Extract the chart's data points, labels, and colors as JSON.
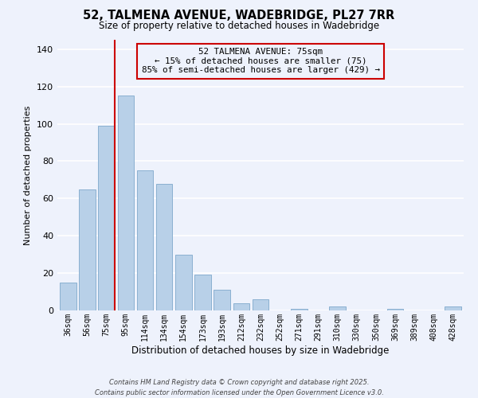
{
  "title": "52, TALMENA AVENUE, WADEBRIDGE, PL27 7RR",
  "subtitle": "Size of property relative to detached houses in Wadebridge",
  "xlabel": "Distribution of detached houses by size in Wadebridge",
  "ylabel": "Number of detached properties",
  "bar_labels": [
    "36sqm",
    "56sqm",
    "75sqm",
    "95sqm",
    "114sqm",
    "134sqm",
    "154sqm",
    "173sqm",
    "193sqm",
    "212sqm",
    "232sqm",
    "252sqm",
    "271sqm",
    "291sqm",
    "310sqm",
    "330sqm",
    "350sqm",
    "369sqm",
    "389sqm",
    "408sqm",
    "428sqm"
  ],
  "bar_values": [
    15,
    65,
    99,
    115,
    75,
    68,
    30,
    19,
    11,
    4,
    6,
    0,
    1,
    0,
    2,
    0,
    0,
    1,
    0,
    0,
    2
  ],
  "bar_color": "#b8d0e8",
  "bar_edge_color": "#8ab0d0",
  "reference_line_color": "#cc0000",
  "reference_bar_index": 2,
  "ylim": [
    0,
    145
  ],
  "yticks": [
    0,
    20,
    40,
    60,
    80,
    100,
    120,
    140
  ],
  "annotation_line1": "52 TALMENA AVENUE: 75sqm",
  "annotation_line2": "← 15% of detached houses are smaller (75)",
  "annotation_line3": "85% of semi-detached houses are larger (429) →",
  "background_color": "#eef2fc",
  "grid_color": "#ffffff",
  "footer_line1": "Contains HM Land Registry data © Crown copyright and database right 2025.",
  "footer_line2": "Contains public sector information licensed under the Open Government Licence v3.0."
}
